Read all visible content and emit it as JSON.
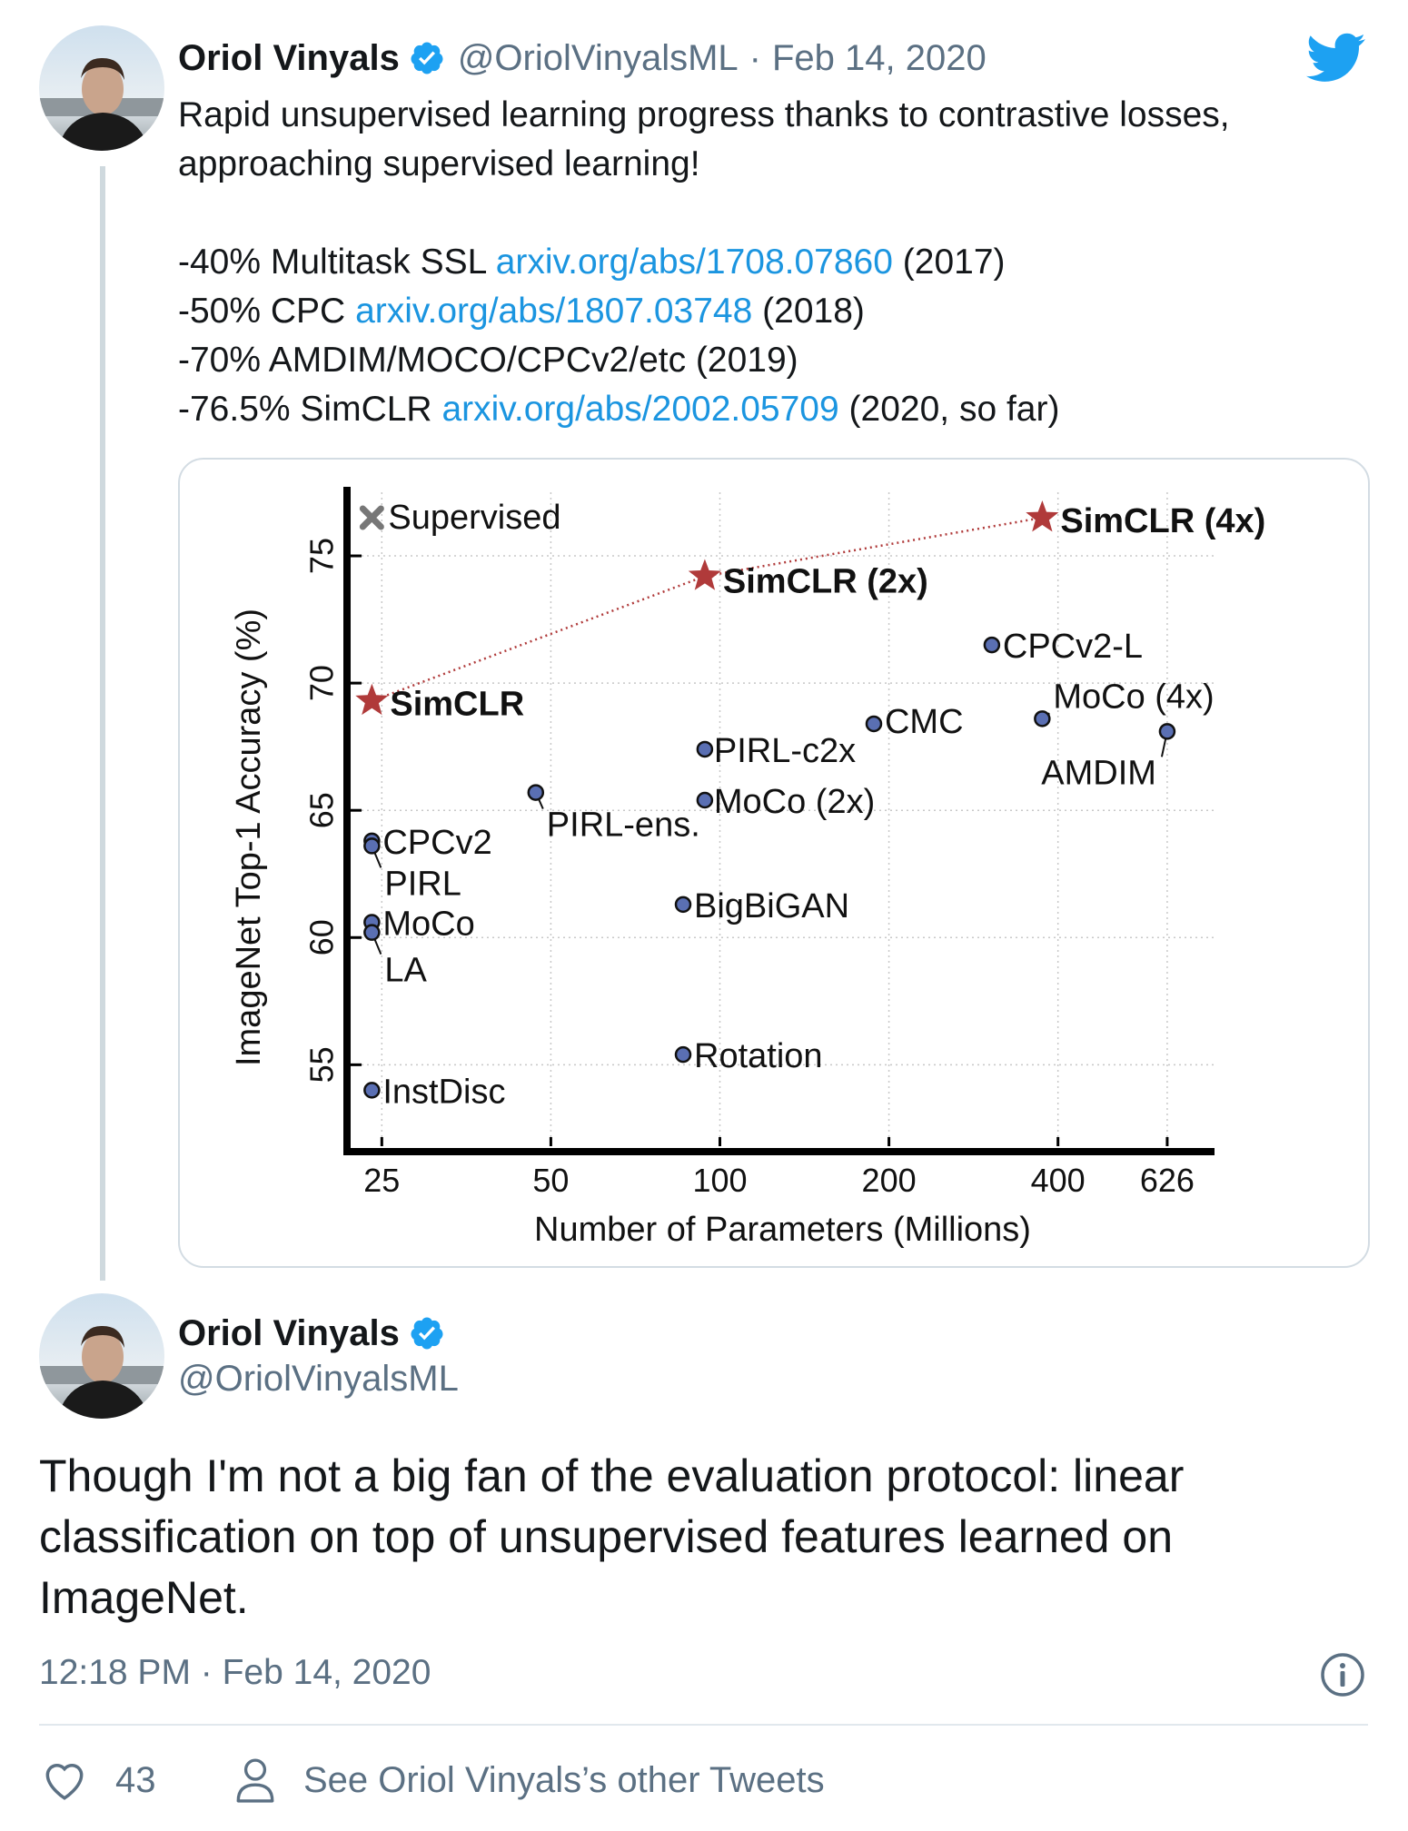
{
  "tweet1": {
    "name": "Oriol Vinyals",
    "handle": "@OriolVinyalsML",
    "separator": "·",
    "date": "Feb 14, 2020",
    "text_line1": "Rapid unsupervised learning progress thanks to contrastive losses,",
    "text_line2": "approaching supervised learning!",
    "items": [
      {
        "prefix": "-40% Multitask SSL ",
        "link": "arxiv.org/abs/1708.07860",
        "suffix": " (2017)"
      },
      {
        "prefix": "-50% CPC ",
        "link": "arxiv.org/abs/1807.03748",
        "suffix": " (2018)"
      },
      {
        "prefix": "-70% AMDIM/MOCO/CPCv2/etc (2019)",
        "link": "",
        "suffix": ""
      },
      {
        "prefix": "-76.5% SimCLR ",
        "link": "arxiv.org/abs/2002.05709",
        "suffix": " (2020, so far)"
      }
    ]
  },
  "tweet2": {
    "name": "Oriol Vinyals",
    "handle": "@OriolVinyalsML",
    "text": "Though I'm not a big fan of the evaluation protocol: linear classification on top of unsupervised features learned on ImageNet.",
    "time": "12:18 PM · Feb 14, 2020",
    "likes": "43",
    "see_more": "See Oriol Vinyals’s other Tweets"
  },
  "colors": {
    "link": "#1b95e0",
    "verified": "#1da1f2",
    "twitter_bird": "#1da1f2",
    "simclr_star": "#b03a3a",
    "point_fill": "#5a6fb3"
  },
  "icons": [
    "verified-badge-icon",
    "twitter-bird-icon",
    "info-icon",
    "heart-icon",
    "person-icon",
    "star-marker",
    "x-marker"
  ],
  "chart_data": {
    "type": "scatter",
    "xlabel": "Number of Parameters (Millions)",
    "ylabel": "ImageNet Top-1 Accuracy (%)",
    "x_scale": "log",
    "x_ticks": [
      25,
      50,
      100,
      200,
      400,
      626
    ],
    "y_ticks": [
      55,
      60,
      65,
      70,
      75
    ],
    "xlim": [
      22,
      760
    ],
    "ylim": [
      51.8,
      77.5
    ],
    "grid": true,
    "legend": {
      "label": "Supervised",
      "marker": "x"
    },
    "supervised_series": [
      {
        "label": "Supervised",
        "x": 24,
        "y": 76.5
      }
    ],
    "simclr_series": [
      {
        "label": "SimCLR",
        "x": 24,
        "y": 69.3
      },
      {
        "label": "SimCLR (2x)",
        "x": 94,
        "y": 74.2
      },
      {
        "label": "SimCLR (4x)",
        "x": 375,
        "y": 76.5
      }
    ],
    "points": [
      {
        "label": "CPCv2",
        "x": 24,
        "y": 63.8
      },
      {
        "label": "PIRL",
        "x": 24,
        "y": 63.6
      },
      {
        "label": "MoCo",
        "x": 24,
        "y": 60.6
      },
      {
        "label": "LA",
        "x": 24,
        "y": 60.2
      },
      {
        "label": "InstDisc",
        "x": 24,
        "y": 54.0
      },
      {
        "label": "PIRL-ens.",
        "x": 47,
        "y": 65.7
      },
      {
        "label": "PIRL-c2x",
        "x": 94,
        "y": 67.4
      },
      {
        "label": "MoCo (2x)",
        "x": 94,
        "y": 65.4
      },
      {
        "label": "BigBiGAN",
        "x": 86,
        "y": 61.3
      },
      {
        "label": "Rotation",
        "x": 86,
        "y": 55.4
      },
      {
        "label": "CMC",
        "x": 188,
        "y": 68.4
      },
      {
        "label": "CPCv2-L",
        "x": 305,
        "y": 71.5
      },
      {
        "label": "MoCo (4x)",
        "x": 375,
        "y": 68.6
      },
      {
        "label": "AMDIM",
        "x": 626,
        "y": 68.1
      }
    ]
  }
}
